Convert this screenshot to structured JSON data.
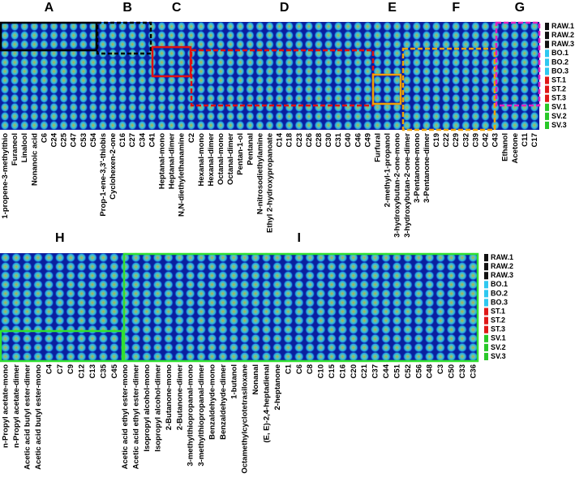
{
  "top": {
    "groups": [
      {
        "label": "A",
        "columns": [
          "1-propene-3-methylthio",
          "Furaneol",
          "Linalool",
          "Nonanoic acid",
          "C6",
          "C24",
          "C25",
          "C47",
          "C53",
          "C54"
        ]
      },
      {
        "label": "B",
        "columns": [
          "Prop-1-ene-3,3'-thiobis",
          "Cyclohexen-2-one",
          "C16",
          "C27",
          "C34",
          "C41"
        ]
      },
      {
        "label": "C",
        "columns": [
          "Heptanal-mono",
          "Heptanal-dimer",
          "N,N-diethylethanamine",
          "C2"
        ]
      },
      {
        "label": "D",
        "columns": [
          "Hexanal-mono",
          "Hexanal-dimer",
          "Octanal-mono",
          "Octanal-dimer",
          "Pentan-1-ol",
          "Pentanal",
          "N-nitrosodiethylamine",
          "Ethyl 2-hydroxypropanoate",
          "C14",
          "C18",
          "C23",
          "C26",
          "C28",
          "C30",
          "C31",
          "C40",
          "C46",
          "C49"
        ]
      },
      {
        "label": "E",
        "columns": [
          "Furfural",
          "2-methyl-1-propanol",
          "3-hydroxybutan-2-one-mono",
          "3-hydroxybutan-2-one-dimer"
        ]
      },
      {
        "label": "F",
        "columns": [
          "3-Pentanone-mono",
          "3-Pentanone-dimer",
          "C19",
          "C22",
          "C29",
          "C32",
          "C39",
          "C42",
          "C43"
        ]
      },
      {
        "label": "G",
        "columns": [
          "Ethanol",
          "Acetone",
          "C11",
          "C17"
        ]
      }
    ],
    "rows": [
      "RAW.1",
      "RAW.2",
      "RAW.3",
      "BO.1",
      "BO.2",
      "BO.3",
      "ST.1",
      "ST.2",
      "ST.3",
      "SV.1",
      "SV.2",
      "SV.3"
    ]
  },
  "bottom": {
    "groups": [
      {
        "label": "H",
        "columns": [
          "n-Propyl acetate-mono",
          "n-Propyl acetate-dimer",
          "Acetic acid butyl ester-dimer",
          "Acetic acid butyl ester-mono",
          "C4",
          "C7",
          "C9",
          "C12",
          "C13",
          "C35",
          "C45"
        ]
      },
      {
        "label": "I",
        "columns": [
          "Acetic acid ethyl ester-mono",
          "Acetic acid ethyl ester-dimer",
          "Isopropyl alcohol-mono",
          "Isopropyl alcohol-dimer",
          "2-Butanone-mono",
          "2-Butanone-dimer",
          "3-methylthiopropanal-mono",
          "3-methylthiopropanal-dimer",
          "Benzaldehyde-mono",
          "Benzaldehyde-dimer",
          "1-butanol",
          "Octamethylcyclotetrasiloxane",
          "Nonanal",
          "(E, E)-2,4-heptadienal",
          "2-heptanone",
          "C1",
          "C6",
          "C8",
          "C10",
          "C15",
          "C16",
          "C20",
          "C21",
          "C37",
          "C44",
          "C51",
          "C52",
          "C56",
          "C48",
          "C3",
          "C50",
          "C33",
          "C36"
        ]
      }
    ],
    "rows": [
      "RAW.1",
      "RAW.2",
      "RAW.3",
      "BO.1",
      "BO.2",
      "BO.3",
      "ST.1",
      "ST.2",
      "ST.3",
      "SV.1",
      "SV.2",
      "SV.3"
    ]
  }
}
